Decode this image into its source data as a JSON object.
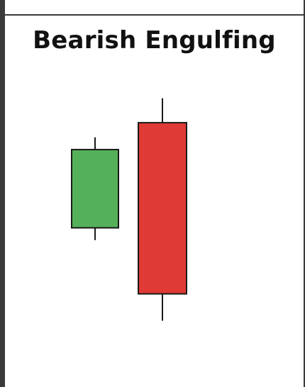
{
  "title": "Bearish Engulfing",
  "colors": {
    "bullish": "#55b05a",
    "bearish": "#df3a35",
    "outline": "#1a1a1a",
    "frame": "#3a3a3a"
  },
  "candles": [
    {
      "type": "bullish",
      "open": 39.5,
      "close": 55.5,
      "high": 58,
      "low": 37
    },
    {
      "type": "bearish",
      "open": 61,
      "close": 26,
      "high": 66,
      "low": 20.5
    }
  ]
}
